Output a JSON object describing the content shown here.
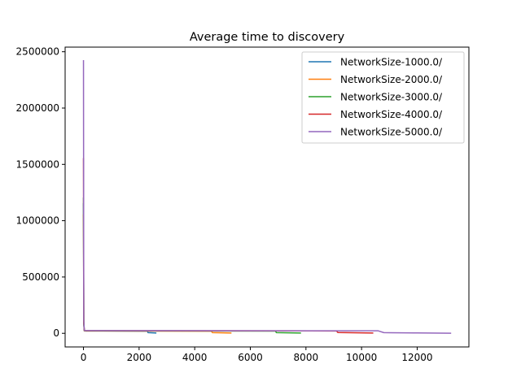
{
  "chart_data": {
    "type": "line",
    "title": "Average time to discovery",
    "xlabel": "",
    "ylabel": "",
    "xlim": [
      -660,
      13860
    ],
    "ylim": [
      -121000,
      2541000
    ],
    "xticks": [
      0,
      2000,
      4000,
      6000,
      8000,
      10000,
      12000
    ],
    "xtick_labels": [
      "0",
      "2000",
      "4000",
      "6000",
      "8000",
      "10000",
      "12000"
    ],
    "yticks": [
      0,
      500000,
      1000000,
      1500000,
      2000000,
      2500000
    ],
    "ytick_labels": [
      "0",
      "500000",
      "1000000",
      "1500000",
      "2000000",
      "2500000"
    ],
    "grid": false,
    "legend_position": "top-right",
    "series": [
      {
        "name": "NetworkSize-1000.0/",
        "color": "#1f77b4",
        "x": [
          0,
          10,
          30,
          80,
          2300,
          2320,
          2600
        ],
        "y": [
          1150000,
          80000,
          22000,
          21000,
          19000,
          6000,
          3000
        ]
      },
      {
        "name": "NetworkSize-2000.0/",
        "color": "#ff7f0e",
        "x": [
          0,
          10,
          30,
          80,
          4600,
          4640,
          5300
        ],
        "y": [
          1050000,
          90000,
          22000,
          21000,
          19000,
          6000,
          3000
        ]
      },
      {
        "name": "NetworkSize-3000.0/",
        "color": "#2ca02c",
        "x": [
          0,
          10,
          30,
          80,
          6900,
          6940,
          7800
        ],
        "y": [
          1200000,
          90000,
          23000,
          22000,
          20000,
          6000,
          3000
        ]
      },
      {
        "name": "NetworkSize-4000.0/",
        "color": "#d62728",
        "x": [
          0,
          10,
          30,
          80,
          9100,
          9150,
          10400
        ],
        "y": [
          1550000,
          100000,
          24000,
          23000,
          21000,
          7000,
          3000
        ]
      },
      {
        "name": "NetworkSize-5000.0/",
        "color": "#9467bd",
        "x": [
          0,
          10,
          30,
          80,
          10600,
          10800,
          11000,
          12000,
          13200
        ],
        "y": [
          2420000,
          120000,
          25000,
          24000,
          22000,
          6000,
          5000,
          3000,
          1000
        ]
      }
    ]
  }
}
